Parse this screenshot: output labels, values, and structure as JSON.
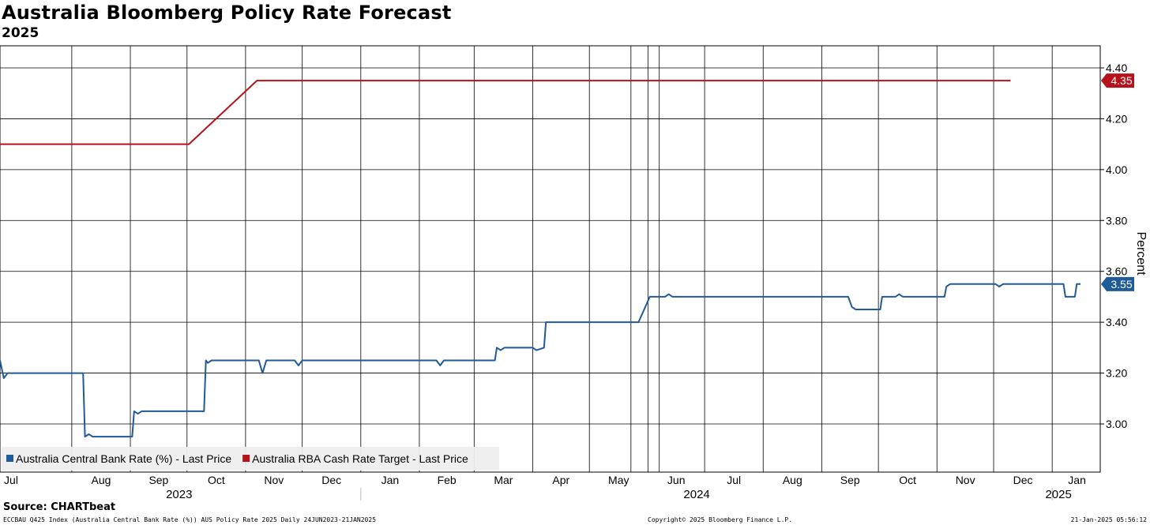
{
  "title": "Australia Bloomberg Policy Rate Forecast",
  "subtitle": "2025",
  "source": "Source: CHARTbeat",
  "footer": {
    "left": "ECCBAU Q425 Index (Australia Central Bank Rate (%)) AUS Policy Rate 2025  Daily 24JUN2023-21JAN2025",
    "mid": "Copyright© 2025 Bloomberg Finance L.P.",
    "right": "21-Jan-2025 05:56:12"
  },
  "colors": {
    "red": "#b5121b",
    "blue": "#1f5b99",
    "grid": "#000000"
  },
  "chart_data": {
    "type": "line",
    "ylabel": "Percent",
    "ylim": [
      2.85,
      4.45
    ],
    "yticks": [
      "4.40",
      "4.20",
      "4.00",
      "3.80",
      "3.60",
      "3.40",
      "3.20",
      "3.00"
    ],
    "xrange": [
      "2023-06-24",
      "2025-01-21"
    ],
    "month_ticks": [
      {
        "label": "Jul",
        "date": "2023-07-01"
      },
      {
        "label": "Aug",
        "date": "2023-08-01"
      },
      {
        "label": "Sep",
        "date": "2023-09-01"
      },
      {
        "label": "Oct",
        "date": "2023-10-01"
      },
      {
        "label": "Nov",
        "date": "2023-11-01"
      },
      {
        "label": "Dec",
        "date": "2023-12-01"
      },
      {
        "label": "Jan",
        "date": "2024-01-01"
      },
      {
        "label": "Feb",
        "date": "2024-02-01"
      },
      {
        "label": "Mar",
        "date": "2024-03-01"
      },
      {
        "label": "Apr",
        "date": "2024-04-01"
      },
      {
        "label": "May",
        "date": "2024-05-01"
      },
      {
        "label": "Jun",
        "date": "2024-06-01"
      },
      {
        "label": "Jul",
        "date": "2024-07-01"
      },
      {
        "label": "Aug",
        "date": "2024-08-01"
      },
      {
        "label": "Sep",
        "date": "2024-09-01"
      },
      {
        "label": "Oct",
        "date": "2024-10-01"
      },
      {
        "label": "Nov",
        "date": "2024-11-01"
      },
      {
        "label": "Dec",
        "date": "2024-12-01"
      },
      {
        "label": "Jan",
        "date": "2025-01-01"
      }
    ],
    "year_labels": [
      {
        "label": "2023",
        "date": "2023-10-01"
      },
      {
        "label": "2024",
        "date": "2024-07-01"
      },
      {
        "label": "2025",
        "date": "2025-01-01"
      }
    ],
    "year_separators": [
      "2024-01-01",
      "2025-01-01"
    ],
    "extra_vlines": [
      "2024-05-23",
      "2024-06-07"
    ],
    "series": [
      {
        "name": "Australia RBA Cash Rate Target - Last Price",
        "color": "#b5121b",
        "last_label": "4.35",
        "points": [
          [
            "2023-06-24",
            4.1
          ],
          [
            "2023-10-02",
            4.1
          ],
          [
            "2023-11-07",
            4.35
          ],
          [
            "2024-12-10",
            4.35
          ]
        ]
      },
      {
        "name": "Australia Central Bank Rate (%) - Last Price",
        "color": "#1f5b99",
        "last_label": "3.55",
        "points": [
          [
            "2023-06-24",
            3.25
          ],
          [
            "2023-06-26",
            3.18
          ],
          [
            "2023-06-28",
            3.2
          ],
          [
            "2023-08-07",
            3.2
          ],
          [
            "2023-08-08",
            2.95
          ],
          [
            "2023-08-10",
            2.96
          ],
          [
            "2023-08-12",
            2.95
          ],
          [
            "2023-09-02",
            2.95
          ],
          [
            "2023-09-03",
            3.05
          ],
          [
            "2023-09-05",
            3.04
          ],
          [
            "2023-09-07",
            3.05
          ],
          [
            "2023-10-10",
            3.05
          ],
          [
            "2023-10-11",
            3.25
          ],
          [
            "2023-10-12",
            3.24
          ],
          [
            "2023-10-14",
            3.25
          ],
          [
            "2023-11-08",
            3.25
          ],
          [
            "2023-11-10",
            3.2
          ],
          [
            "2023-11-12",
            3.25
          ],
          [
            "2023-11-27",
            3.25
          ],
          [
            "2023-11-29",
            3.23
          ],
          [
            "2023-12-01",
            3.25
          ],
          [
            "2024-02-10",
            3.25
          ],
          [
            "2024-02-12",
            3.23
          ],
          [
            "2024-02-14",
            3.25
          ],
          [
            "2024-03-12",
            3.25
          ],
          [
            "2024-03-13",
            3.3
          ],
          [
            "2024-03-15",
            3.29
          ],
          [
            "2024-03-17",
            3.3
          ],
          [
            "2024-04-01",
            3.3
          ],
          [
            "2024-04-03",
            3.29
          ],
          [
            "2024-04-07",
            3.3
          ],
          [
            "2024-04-08",
            3.4
          ],
          [
            "2024-05-27",
            3.4
          ],
          [
            "2024-06-02",
            3.5
          ],
          [
            "2024-06-10",
            3.5
          ],
          [
            "2024-06-12",
            3.51
          ],
          [
            "2024-06-14",
            3.5
          ],
          [
            "2024-09-15",
            3.5
          ],
          [
            "2024-09-17",
            3.46
          ],
          [
            "2024-09-19",
            3.45
          ],
          [
            "2024-10-02",
            3.45
          ],
          [
            "2024-10-03",
            3.5
          ],
          [
            "2024-10-10",
            3.5
          ],
          [
            "2024-10-12",
            3.51
          ],
          [
            "2024-10-14",
            3.5
          ],
          [
            "2024-11-05",
            3.5
          ],
          [
            "2024-11-06",
            3.54
          ],
          [
            "2024-11-08",
            3.55
          ],
          [
            "2024-12-02",
            3.55
          ],
          [
            "2024-12-04",
            3.54
          ],
          [
            "2024-12-06",
            3.55
          ],
          [
            "2025-01-07",
            3.55
          ],
          [
            "2025-01-08",
            3.5
          ],
          [
            "2025-01-13",
            3.5
          ],
          [
            "2025-01-14",
            3.55
          ],
          [
            "2025-01-16",
            3.55
          ]
        ]
      }
    ],
    "legend": [
      {
        "label": "Australia Central Bank Rate (%) - Last Price",
        "color": "#1f5b99"
      },
      {
        "label": "Australia RBA Cash Rate Target - Last Price",
        "color": "#b5121b"
      }
    ],
    "legend_position": "bottom-left",
    "grid": true
  }
}
